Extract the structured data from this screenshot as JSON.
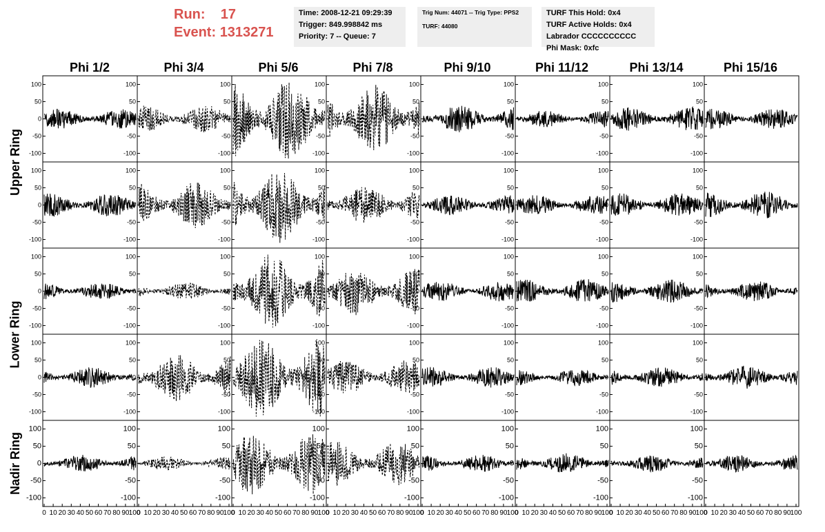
{
  "header": {
    "run_label": "Run:",
    "run_value": "17",
    "event_label": "Event:",
    "event_value": "1313271",
    "time_box": [
      "Time: 2008-12-21 09:29:39",
      "Trigger: 849.998842 ms",
      "Priority: 7 -- Queue: 7"
    ],
    "trig_box": [
      "Trig Num: 44071 -- Trig Type: PPS2",
      "",
      "TURF: 44080"
    ],
    "turf_box": [
      "TURF This Hold: 0x4",
      "TURF Active Holds: 0x4",
      "Labrador CCCCCCCCCC",
      "Phi Mask: 0xfc"
    ]
  },
  "chart_data": {
    "type": "line",
    "columns": [
      "Phi 1/2",
      "Phi 3/4",
      "Phi 5/6",
      "Phi 7/8",
      "Phi 9/10",
      "Phi 11/12",
      "Phi 13/14",
      "Phi 15/16"
    ],
    "row_labels": [
      "Upper Ring",
      "Lower Ring",
      "Nadir Ring"
    ],
    "rows": 5,
    "ylim": [
      -125,
      125
    ],
    "yticks": [
      100,
      50,
      0,
      -50,
      -100
    ],
    "xlim": [
      0,
      100
    ],
    "xtick_labels": [
      "0",
      "10",
      "20",
      "30",
      "40",
      "50",
      "60",
      "70",
      "80",
      "90",
      "100"
    ],
    "amplitude_grid": [
      [
        30,
        40,
        120,
        100,
        40,
        25,
        35,
        30
      ],
      [
        35,
        70,
        110,
        60,
        30,
        30,
        35,
        40
      ],
      [
        25,
        25,
        110,
        70,
        30,
        35,
        35,
        30
      ],
      [
        30,
        70,
        120,
        50,
        30,
        25,
        30,
        35
      ],
      [
        25,
        20,
        90,
        65,
        25,
        30,
        25,
        25
      ]
    ],
    "dashed_grid": [
      [
        false,
        true,
        true,
        true,
        false,
        false,
        false,
        false
      ],
      [
        false,
        true,
        true,
        true,
        false,
        false,
        false,
        false
      ],
      [
        false,
        true,
        true,
        true,
        false,
        false,
        false,
        false
      ],
      [
        false,
        true,
        true,
        true,
        false,
        false,
        false,
        false
      ],
      [
        false,
        true,
        true,
        true,
        false,
        false,
        false,
        false
      ]
    ],
    "samples_per_trace": 260
  }
}
